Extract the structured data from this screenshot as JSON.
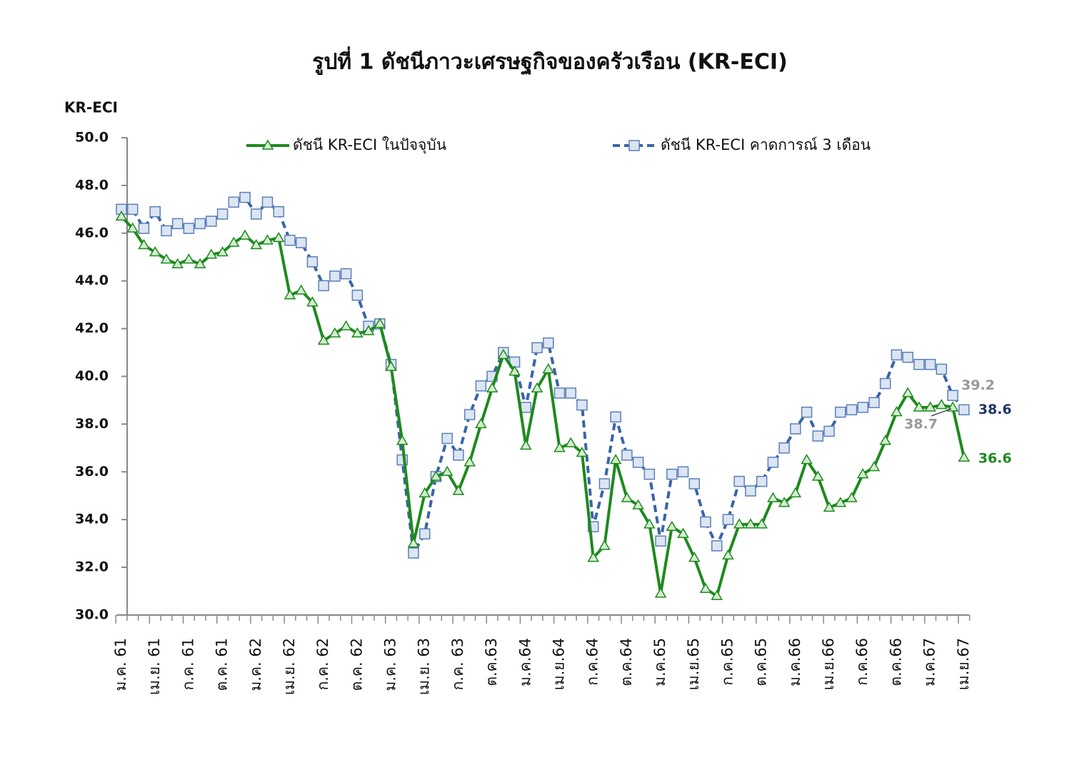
{
  "chart_data": {
    "type": "line",
    "title": "รูปที่ 1 ดัชนีภาวะเศรษฐกิจของครัวเรือน (KR-ECI)",
    "y_label": "KR-ECI",
    "ylim": [
      30,
      50
    ],
    "yticks": [
      {
        "value": 30,
        "label": "30.0"
      },
      {
        "value": 32,
        "label": "32.0"
      },
      {
        "value": 34,
        "label": "34.0"
      },
      {
        "value": 36,
        "label": "36.0"
      },
      {
        "value": 38,
        "label": "38.0"
      },
      {
        "value": 40,
        "label": "40.0"
      },
      {
        "value": 42,
        "label": "42.0"
      },
      {
        "value": 44,
        "label": "44.0"
      },
      {
        "value": 46,
        "label": "46.0"
      },
      {
        "value": 48,
        "label": "48.0"
      },
      {
        "value": 50,
        "label": "50.0"
      }
    ],
    "categories": [
      "ม.ค. 61",
      null,
      null,
      "เม.ย. 61",
      null,
      null,
      "ก.ค. 61",
      null,
      null,
      "ต.ค. 61",
      null,
      null,
      "ม.ค. 62",
      null,
      null,
      "เม.ย. 62",
      null,
      null,
      "ก.ค. 62",
      null,
      null,
      "ต.ค. 62",
      null,
      null,
      "ม.ค. 63",
      null,
      null,
      "เม.ย. 63",
      null,
      null,
      "ก.ค. 63",
      null,
      null,
      "ต.ค.63",
      null,
      null,
      "ม.ค.64",
      null,
      null,
      "เม.ย.64",
      null,
      null,
      "ก.ค.64",
      null,
      null,
      "ต.ค.64",
      null,
      null,
      "ม.ค.65",
      null,
      null,
      "เม.ย.65",
      null,
      null,
      "ก.ค.65",
      null,
      null,
      "ต.ค.65",
      null,
      null,
      "ม.ค.66",
      null,
      null,
      "เม.ย.66",
      null,
      null,
      "ก.ค.66",
      null,
      null,
      "ต.ค.66",
      null,
      null,
      "ม.ค.67",
      null,
      null,
      "เม.ย.67"
    ],
    "series": [
      {
        "name": "ดัชนี KR-ECI ในปัจจุบัน",
        "color": "#1e8a1e",
        "marker": "triangle",
        "values": [
          46.7,
          46.2,
          45.5,
          45.2,
          44.9,
          44.7,
          44.9,
          44.7,
          45.1,
          45.2,
          45.6,
          45.9,
          45.5,
          45.7,
          45.8,
          43.4,
          43.6,
          43.1,
          41.5,
          41.8,
          42.1,
          41.8,
          41.9,
          42.2,
          40.4,
          37.3,
          33.0,
          35.1,
          35.8,
          36.0,
          35.2,
          36.4,
          38.0,
          39.5,
          40.9,
          40.2,
          37.1,
          39.5,
          40.3,
          37.0,
          37.2,
          36.8,
          32.4,
          32.9,
          36.5,
          34.9,
          34.6,
          33.8,
          30.9,
          33.7,
          33.4,
          32.4,
          31.1,
          30.8,
          32.5,
          33.8,
          33.8,
          33.8,
          34.9,
          34.7,
          35.1,
          36.5,
          35.8,
          34.5,
          34.7,
          34.9,
          35.9,
          36.2,
          37.3,
          38.5,
          39.3,
          38.7,
          38.7,
          38.8,
          38.7,
          36.6
        ],
        "labels": [
          {
            "index": 74,
            "color": "#999999"
          },
          {
            "index": 75,
            "color": "#1e8a1e"
          }
        ]
      },
      {
        "name": "ดัชนี KR-ECI คาดการณ์ 3 เดือน",
        "color": "#3a64a8",
        "marker": "square",
        "values": [
          47.0,
          47.0,
          46.2,
          46.9,
          46.1,
          46.4,
          46.2,
          46.4,
          46.5,
          46.8,
          47.3,
          47.5,
          46.8,
          47.3,
          46.9,
          45.7,
          45.6,
          44.8,
          43.8,
          44.2,
          44.3,
          43.4,
          42.1,
          42.2,
          40.5,
          36.5,
          32.6,
          33.4,
          35.8,
          37.4,
          36.7,
          38.4,
          39.6,
          40.0,
          41.0,
          40.6,
          38.7,
          41.2,
          41.4,
          39.3,
          39.3,
          38.8,
          33.7,
          35.5,
          38.3,
          36.7,
          36.4,
          35.9,
          33.1,
          35.9,
          36.0,
          35.5,
          33.9,
          32.9,
          34.0,
          35.6,
          35.2,
          35.6,
          36.4,
          37.0,
          37.8,
          38.5,
          37.5,
          37.7,
          38.5,
          38.6,
          38.7,
          38.9,
          39.7,
          40.9,
          40.8,
          40.5,
          40.5,
          40.3,
          39.2,
          38.6
        ],
        "labels": [
          {
            "index": 74,
            "color": "#999999"
          },
          {
            "index": 75,
            "color": "#1f3864"
          }
        ]
      }
    ]
  }
}
